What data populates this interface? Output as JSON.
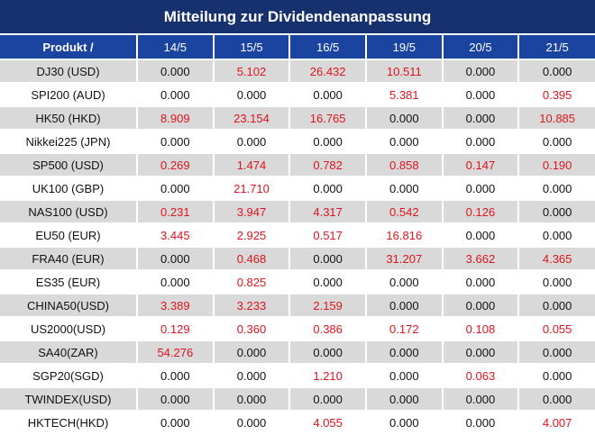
{
  "title": "Mitteilung zur Dividendenanpassung",
  "columns": [
    "Produkt /",
    "14/5",
    "15/5",
    "16/5",
    "19/5",
    "20/5",
    "21/5"
  ],
  "colors": {
    "header": "#17306e",
    "subheader": "#1b44a0",
    "positive": "#e0141e",
    "stripe": "#d9d9d9"
  },
  "rows": [
    {
      "name": "DJ30 (USD)",
      "values": [
        "0.000",
        "5.102",
        "26.432",
        "10.511",
        "0.000",
        "0.000"
      ]
    },
    {
      "name": "SPI200 (AUD)",
      "values": [
        "0.000",
        "0.000",
        "0.000",
        "5.381",
        "0.000",
        "0.395"
      ]
    },
    {
      "name": "HK50 (HKD)",
      "values": [
        "8.909",
        "23.154",
        "16.765",
        "0.000",
        "0.000",
        "10.885"
      ]
    },
    {
      "name": "Nikkei225 (JPN)",
      "values": [
        "0.000",
        "0.000",
        "0.000",
        "0.000",
        "0.000",
        "0.000"
      ]
    },
    {
      "name": "SP500 (USD)",
      "values": [
        "0.269",
        "1.474",
        "0.782",
        "0.858",
        "0.147",
        "0.190"
      ]
    },
    {
      "name": "UK100 (GBP)",
      "values": [
        "0.000",
        "21.710",
        "0.000",
        "0.000",
        "0.000",
        "0.000"
      ]
    },
    {
      "name": "NAS100 (USD)",
      "values": [
        "0.231",
        "3.947",
        "4.317",
        "0.542",
        "0.126",
        "0.000"
      ]
    },
    {
      "name": "EU50 (EUR)",
      "values": [
        "3.445",
        "2.925",
        "0.517",
        "16.816",
        "0.000",
        "0.000"
      ]
    },
    {
      "name": "FRA40 (EUR)",
      "values": [
        "0.000",
        "0.468",
        "0.000",
        "31.207",
        "3.662",
        "4.365"
      ]
    },
    {
      "name": "ES35 (EUR)",
      "values": [
        "0.000",
        "0.825",
        "0.000",
        "0.000",
        "0.000",
        "0.000"
      ]
    },
    {
      "name": "CHINA50(USD)",
      "values": [
        "3.389",
        "3.233",
        "2.159",
        "0.000",
        "0.000",
        "0.000"
      ]
    },
    {
      "name": "US2000(USD)",
      "values": [
        "0.129",
        "0.360",
        "0.386",
        "0.172",
        "0.108",
        "0.055"
      ]
    },
    {
      "name": "SA40(ZAR)",
      "values": [
        "54.276",
        "0.000",
        "0.000",
        "0.000",
        "0.000",
        "0.000"
      ]
    },
    {
      "name": "SGP20(SGD)",
      "values": [
        "0.000",
        "0.000",
        "1.210",
        "0.000",
        "0.063",
        "0.000"
      ]
    },
    {
      "name": "TWINDEX(USD)",
      "values": [
        "0.000",
        "0.000",
        "0.000",
        "0.000",
        "0.000",
        "0.000"
      ]
    },
    {
      "name": "HKTECH(HKD)",
      "values": [
        "0.000",
        "0.000",
        "4.055",
        "0.000",
        "0.000",
        "4.007"
      ]
    }
  ]
}
